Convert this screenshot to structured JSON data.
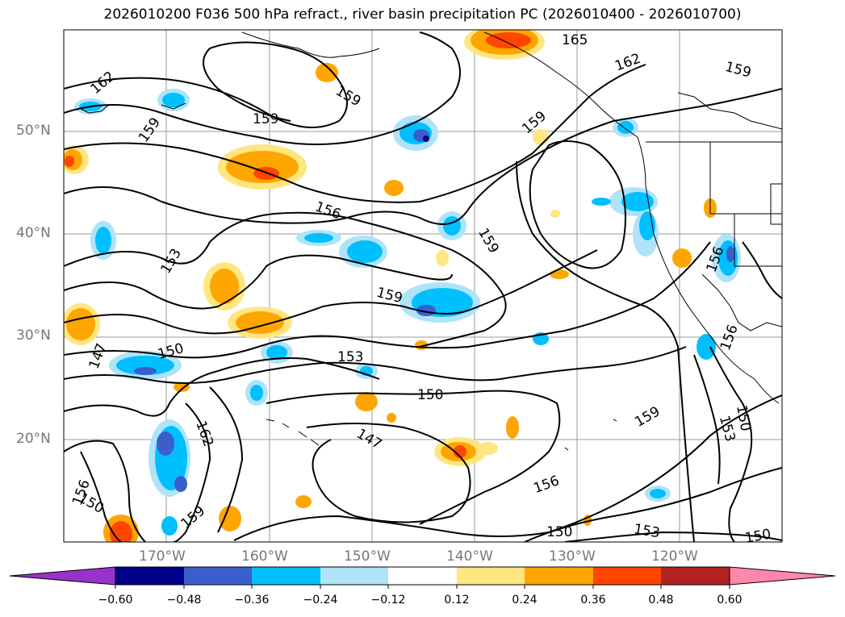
{
  "title": "2026010200 F036 500 hPa refract., river basin precipitation PC (2026010400 - 2026010700)",
  "lat_labels": [
    "50°N",
    "40°N",
    "30°N",
    "20°N"
  ],
  "lon_labels": [
    "170°W",
    "160°W",
    "150°W",
    "140°W",
    "130°W",
    "120°W"
  ],
  "contour_labels": [
    "165",
    "162",
    "162",
    "159",
    "159",
    "159",
    "159",
    "159",
    "159",
    "159",
    "156",
    "156",
    "156",
    "156",
    "156",
    "153",
    "153",
    "153",
    "153",
    "150",
    "150",
    "150",
    "150",
    "150",
    "147",
    "147",
    "162",
    "159",
    "159",
    "150"
  ],
  "colorbar": {
    "ticks": [
      "−0.60",
      "−0.48",
      "−0.36",
      "−0.24",
      "−0.12",
      "0.12",
      "0.24",
      "0.36",
      "0.48",
      "0.60"
    ],
    "colors": [
      "#9932cc",
      "#00008b",
      "#3a5fcd",
      "#00bfff",
      "#aee3f8",
      "#ffffff",
      "#ffe680",
      "#ffa500",
      "#ff4500",
      "#b22222",
      "#ff88aa"
    ]
  }
}
